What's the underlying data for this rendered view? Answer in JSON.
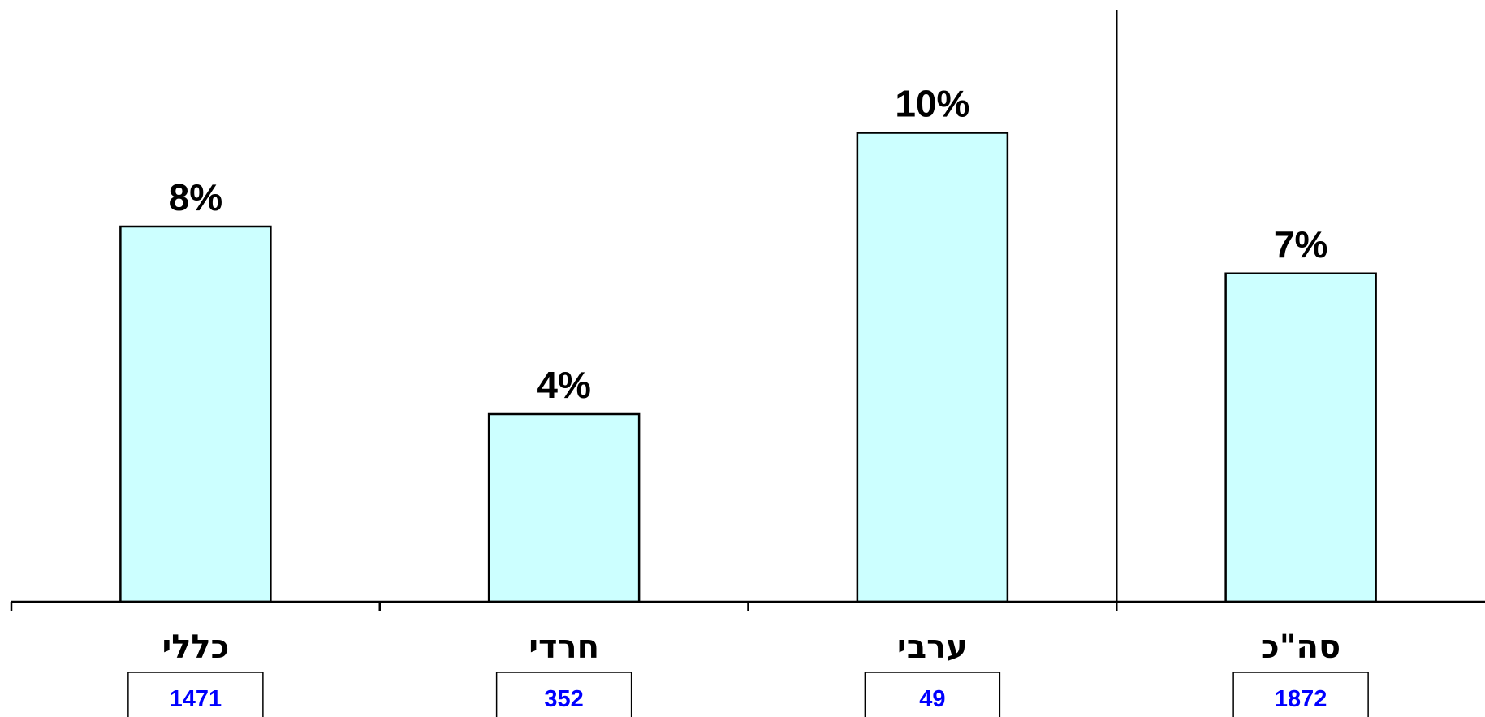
{
  "colors": {
    "bar_fill": "#ccffff",
    "bar_stroke": "#000000",
    "count_text": "#0000ff",
    "label_text": "#000000"
  },
  "chart_data": {
    "type": "bar",
    "title": "",
    "xlabel": "",
    "ylabel": "",
    "ylim": [
      0,
      12
    ],
    "grid": false,
    "legend": "none",
    "categories": [
      "כללי",
      "חרדי",
      "ערבי",
      "סה\"כ"
    ],
    "values": [
      8,
      4,
      10,
      7
    ],
    "value_labels": [
      "8%",
      "4%",
      "10%",
      "7%"
    ],
    "counts": [
      "1471",
      "352",
      "49",
      "1872"
    ],
    "separator_before_category": 3
  }
}
